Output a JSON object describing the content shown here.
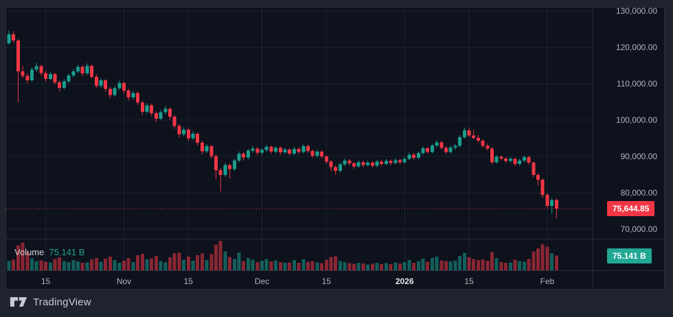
{
  "brand": {
    "name": "TradingView"
  },
  "badges": {
    "price": "75,644.85",
    "volume": "75.141 B"
  },
  "volume": {
    "label": "Volume",
    "value_label": "75.141 B"
  },
  "colors": {
    "up": "#1b9e8e",
    "down": "#f23645",
    "last_price_line": "#f23645",
    "badge_red": "#f23645",
    "badge_teal": "#22a794",
    "grid": "rgba(160,175,205,0.10)",
    "axis_text": "#b2b5be",
    "background_outer": "#1f232d",
    "background_chart": "#0d121d"
  },
  "chart_data": {
    "type": "candlestick",
    "title": "",
    "xlabel": "",
    "ylabel": "",
    "grid": true,
    "legend_position": "none",
    "y_axis": {
      "side": "right",
      "ylim": [
        67400,
        130900
      ],
      "ticks": [
        {
          "label": "130,000.00",
          "value": 130000
        },
        {
          "label": "120,000.00",
          "value": 120000
        },
        {
          "label": "110,000.00",
          "value": 110000
        },
        {
          "label": "100,000.00",
          "value": 100000
        },
        {
          "label": "90,000.00",
          "value": 90000
        },
        {
          "label": "80,000.00",
          "value": 80000
        },
        {
          "label": "70,000.00",
          "value": 70000
        }
      ]
    },
    "x_axis": {
      "ticks": [
        {
          "label": "15",
          "index": 8,
          "major": false
        },
        {
          "label": "Nov",
          "index": 25,
          "major": false
        },
        {
          "label": "15",
          "index": 39,
          "major": false
        },
        {
          "label": "Dec",
          "index": 55,
          "major": false
        },
        {
          "label": "15",
          "index": 69,
          "major": false
        },
        {
          "label": "2026",
          "index": 86,
          "major": true
        },
        {
          "label": "15",
          "index": 100,
          "major": false
        },
        {
          "label": "Feb",
          "index": 117,
          "major": false
        }
      ]
    },
    "last_price": 75644.85,
    "latest_volume_billions": 75.141,
    "candles_ohlc_usd": [
      [
        121100,
        124600,
        120700,
        123600
      ],
      [
        123600,
        124400,
        121200,
        121900
      ],
      [
        121900,
        122300,
        104900,
        113400
      ],
      [
        113400,
        114900,
        111500,
        112200
      ],
      [
        112200,
        112900,
        109900,
        110900
      ],
      [
        110900,
        114500,
        110500,
        113900
      ],
      [
        113900,
        115800,
        113300,
        114800
      ],
      [
        114800,
        115200,
        112200,
        112900
      ],
      [
        112900,
        113600,
        110600,
        111300
      ],
      [
        111300,
        113200,
        110900,
        112600
      ],
      [
        112600,
        113000,
        109800,
        110400
      ],
      [
        110400,
        110900,
        107900,
        108900
      ],
      [
        108900,
        111300,
        108400,
        110700
      ],
      [
        110700,
        112800,
        110200,
        112300
      ],
      [
        112300,
        114000,
        111800,
        113400
      ],
      [
        113400,
        115200,
        112900,
        114600
      ],
      [
        114600,
        115100,
        112100,
        112800
      ],
      [
        112800,
        115600,
        112400,
        114900
      ],
      [
        114900,
        115300,
        111400,
        111900
      ],
      [
        111900,
        112600,
        108800,
        109400
      ],
      [
        109400,
        111500,
        108900,
        110900
      ],
      [
        110900,
        111300,
        107800,
        108600
      ],
      [
        108600,
        109200,
        106000,
        106900
      ],
      [
        106900,
        109400,
        106400,
        108800
      ],
      [
        108800,
        110900,
        108300,
        110200
      ],
      [
        110200,
        110600,
        107400,
        108100
      ],
      [
        108100,
        108600,
        105400,
        106200
      ],
      [
        106200,
        108100,
        105700,
        107500
      ],
      [
        107500,
        107900,
        104100,
        104800
      ],
      [
        104800,
        105300,
        101400,
        102300
      ],
      [
        102300,
        104700,
        101800,
        104100
      ],
      [
        104100,
        104500,
        101100,
        101900
      ],
      [
        101900,
        102400,
        99500,
        100400
      ],
      [
        100400,
        102800,
        99900,
        102200
      ],
      [
        102200,
        103900,
        101600,
        103100
      ],
      [
        103100,
        103500,
        100100,
        100900
      ],
      [
        100900,
        101400,
        97600,
        98400
      ],
      [
        98400,
        98900,
        95200,
        96100
      ],
      [
        96100,
        98100,
        95600,
        97400
      ],
      [
        97400,
        97800,
        94200,
        95000
      ],
      [
        95000,
        96900,
        94500,
        96200
      ],
      [
        96200,
        96600,
        93000,
        93800
      ],
      [
        93800,
        94300,
        90500,
        91400
      ],
      [
        91400,
        93400,
        90900,
        92800
      ],
      [
        92800,
        93200,
        89400,
        90100
      ],
      [
        90100,
        90500,
        83800,
        86200
      ],
      [
        86200,
        86800,
        80400,
        84900
      ],
      [
        84900,
        88200,
        84400,
        87600
      ],
      [
        87600,
        88000,
        83900,
        86500
      ],
      [
        86500,
        89400,
        86000,
        88900
      ],
      [
        88900,
        91400,
        88400,
        90800
      ],
      [
        90800,
        91200,
        88900,
        89700
      ],
      [
        89700,
        92100,
        89200,
        91600
      ],
      [
        91600,
        92900,
        91000,
        92200
      ],
      [
        92200,
        92600,
        90300,
        91000
      ],
      [
        91000,
        92400,
        90500,
        91800
      ],
      [
        91800,
        93200,
        91300,
        92600
      ],
      [
        92600,
        93000,
        90700,
        91300
      ],
      [
        91300,
        92900,
        90800,
        92400
      ],
      [
        92400,
        92800,
        90400,
        91100
      ],
      [
        91100,
        92500,
        90700,
        91900
      ],
      [
        91900,
        92300,
        90200,
        90800
      ],
      [
        90800,
        92600,
        90300,
        92100
      ],
      [
        92100,
        92500,
        90600,
        91200
      ],
      [
        91200,
        93300,
        90800,
        92800
      ],
      [
        92800,
        93200,
        91000,
        91500
      ],
      [
        91500,
        91900,
        89600,
        90200
      ],
      [
        90200,
        91800,
        89700,
        91300
      ],
      [
        91300,
        91700,
        89400,
        90000
      ],
      [
        90000,
        90400,
        88000,
        88600
      ],
      [
        88600,
        89000,
        85900,
        87100
      ],
      [
        87100,
        87500,
        85000,
        86000
      ],
      [
        86000,
        88300,
        85600,
        87800
      ],
      [
        87800,
        89400,
        87300,
        88900
      ],
      [
        88900,
        89300,
        87500,
        88100
      ],
      [
        88100,
        88500,
        86600,
        87300
      ],
      [
        87300,
        88900,
        86900,
        88400
      ],
      [
        88400,
        88800,
        87000,
        87600
      ],
      [
        87600,
        88800,
        87200,
        88300
      ],
      [
        88300,
        88700,
        86900,
        87500
      ],
      [
        87500,
        89100,
        87100,
        88600
      ],
      [
        88600,
        89000,
        87300,
        87900
      ],
      [
        87900,
        89300,
        87500,
        88800
      ],
      [
        88800,
        89200,
        87600,
        88200
      ],
      [
        88200,
        89500,
        87800,
        89000
      ],
      [
        89000,
        89400,
        87900,
        88400
      ],
      [
        88400,
        89800,
        88000,
        89300
      ],
      [
        89300,
        91000,
        88900,
        90500
      ],
      [
        90500,
        90900,
        89100,
        89600
      ],
      [
        89600,
        91400,
        89200,
        90900
      ],
      [
        90900,
        92800,
        90500,
        92300
      ],
      [
        92300,
        92700,
        90700,
        91200
      ],
      [
        91200,
        93500,
        90800,
        93000
      ],
      [
        93000,
        94400,
        92500,
        93900
      ],
      [
        93900,
        94300,
        91900,
        92400
      ],
      [
        92400,
        92800,
        90700,
        91200
      ],
      [
        91200,
        93000,
        90800,
        92500
      ],
      [
        92500,
        93400,
        91800,
        92900
      ],
      [
        92900,
        95800,
        92500,
        95300
      ],
      [
        95300,
        97900,
        94900,
        97200
      ],
      [
        97200,
        97800,
        95300,
        95800
      ],
      [
        95800,
        97300,
        94600,
        95100
      ],
      [
        95100,
        95900,
        93800,
        94300
      ],
      [
        94300,
        94700,
        92400,
        92900
      ],
      [
        92900,
        93600,
        91600,
        92200
      ],
      [
        92200,
        92600,
        87800,
        88400
      ],
      [
        88400,
        90400,
        88000,
        89900
      ],
      [
        89900,
        90300,
        88900,
        89400
      ],
      [
        89400,
        89800,
        88200,
        88800
      ],
      [
        88800,
        89900,
        88300,
        89300
      ],
      [
        89300,
        89700,
        87300,
        87900
      ],
      [
        87900,
        89400,
        87400,
        88900
      ],
      [
        88900,
        90300,
        88400,
        89800
      ],
      [
        89800,
        90200,
        87700,
        88300
      ],
      [
        88300,
        88700,
        84300,
        84900
      ],
      [
        84900,
        85400,
        82000,
        83600
      ],
      [
        83600,
        84000,
        78600,
        79400
      ],
      [
        79400,
        79900,
        75800,
        76400
      ],
      [
        76400,
        78600,
        74200,
        78000
      ],
      [
        78000,
        78500,
        73000,
        75644.85
      ]
    ],
    "volume_billions": [
      48,
      55,
      128,
      142,
      95,
      62,
      48,
      51,
      44,
      40,
      58,
      66,
      47,
      42,
      53,
      45,
      38,
      41,
      56,
      63,
      44,
      59,
      71,
      52,
      39,
      49,
      64,
      43,
      78,
      85,
      57,
      62,
      74,
      48,
      41,
      66,
      88,
      92,
      54,
      71,
      49,
      77,
      86,
      52,
      83,
      132,
      151,
      96,
      68,
      58,
      91,
      47,
      63,
      55,
      42,
      49,
      58,
      45,
      51,
      43,
      38,
      41,
      52,
      39,
      56,
      44,
      47,
      40,
      36,
      54,
      68,
      72,
      48,
      42,
      37,
      33,
      39,
      35,
      30,
      34,
      38,
      32,
      36,
      31,
      40,
      35,
      43,
      52,
      39,
      47,
      59,
      44,
      63,
      70,
      51,
      48,
      45,
      50,
      74,
      89,
      66,
      58,
      52,
      57,
      49,
      93,
      61,
      42,
      38,
      40,
      55,
      47,
      44,
      58,
      97,
      112,
      134,
      121,
      88,
      75.141
    ]
  }
}
